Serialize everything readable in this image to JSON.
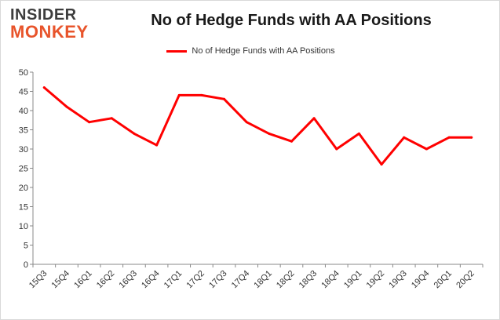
{
  "logo": {
    "line1": "INSIDER",
    "line2": "MONKEY"
  },
  "chart_data": {
    "type": "line",
    "title": "No of Hedge Funds with AA Positions",
    "xlabel": "",
    "ylabel": "",
    "categories": [
      "15Q3",
      "15Q4",
      "16Q1",
      "16Q2",
      "16Q3",
      "16Q4",
      "17Q1",
      "17Q2",
      "17Q3",
      "17Q4",
      "18Q1",
      "18Q2",
      "18Q3",
      "18Q4",
      "19Q1",
      "19Q2",
      "19Q3",
      "19Q4",
      "20Q1",
      "20Q2"
    ],
    "series": [
      {
        "name": "No of Hedge Funds with AA Positions",
        "values": [
          46,
          41,
          37,
          38,
          34,
          31,
          44,
          44,
          43,
          37,
          34,
          32,
          38,
          30,
          34,
          26,
          33,
          30,
          33,
          33
        ]
      }
    ],
    "ylim": [
      0,
      50
    ],
    "yticks": [
      0,
      5,
      10,
      15,
      20,
      25,
      30,
      35,
      40,
      45,
      50
    ],
    "grid": false,
    "legend": "top-center",
    "line_color": "#ff0000"
  }
}
